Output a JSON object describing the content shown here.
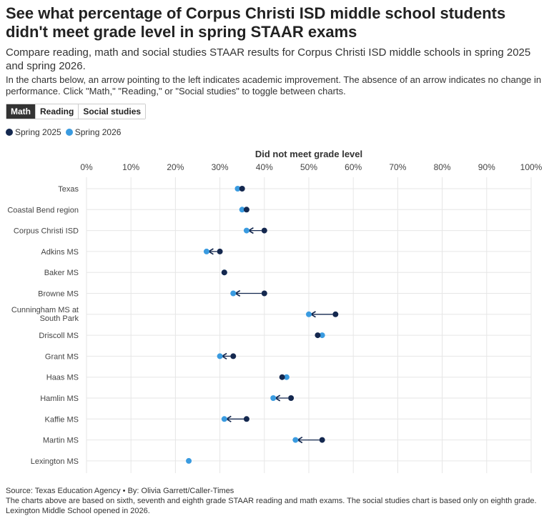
{
  "title": "See what percentage of Corpus Christi ISD middle school students didn't meet grade level in spring STAAR exams",
  "subtitle": "Compare reading, math and social studies STAAR results for Corpus Christi ISD middle schools in spring 2025 and spring 2026.",
  "note": "In the charts below, an arrow pointing to the left indicates academic improvement. The absence of an arrow indicates no change in performance. Click \"Math,\" \"Reading,\" or \"Social studies\" to toggle between charts.",
  "tabs": [
    {
      "label": "Math",
      "active": true
    },
    {
      "label": "Reading",
      "active": false
    },
    {
      "label": "Social studies",
      "active": false
    }
  ],
  "footer": {
    "source": "Source: Texas Education Agency • By: Olivia Garrett/Caller-Times",
    "note": "The charts above are based on sixth, seventh and eighth grade STAAR reading and math exams. The social studies chart is based only on eighth grade. Lexington Middle School opened in 2026."
  },
  "colors": {
    "spring_2025": "#14284f",
    "spring_2026": "#3a9be0",
    "grid": "#e6e6e6",
    "arrow": "#14284f"
  },
  "chart_data": {
    "type": "dot-arrow",
    "title": "Did not meet grade level",
    "xlabel": "Did not meet grade level",
    "xlim": [
      0,
      100
    ],
    "x_ticks": [
      "0%",
      "10%",
      "20%",
      "30%",
      "40%",
      "50%",
      "60%",
      "70%",
      "80%",
      "90%",
      "100%"
    ],
    "x_tick_values": [
      0,
      10,
      20,
      30,
      40,
      50,
      60,
      70,
      80,
      90,
      100
    ],
    "legend": "top-left",
    "grid": true,
    "categories": [
      "Texas",
      "Coastal Bend region",
      "Corpus Christi ISD",
      "Adkins MS",
      "Baker MS",
      "Browne MS",
      "Cunningham MS at South Park",
      "Driscoll MS",
      "Grant MS",
      "Haas MS",
      "Hamlin MS",
      "Kaffie MS",
      "Martin MS",
      "Lexington MS"
    ],
    "category_lines": [
      [
        "Texas"
      ],
      [
        "Coastal Bend region"
      ],
      [
        "Corpus Christi ISD"
      ],
      [
        "Adkins MS"
      ],
      [
        "Baker MS"
      ],
      [
        "Browne MS"
      ],
      [
        "Cunningham MS at",
        "South Park"
      ],
      [
        "Driscoll MS"
      ],
      [
        "Grant MS"
      ],
      [
        "Haas MS"
      ],
      [
        "Hamlin MS"
      ],
      [
        "Kaffie MS"
      ],
      [
        "Martin MS"
      ],
      [
        "Lexington MS"
      ]
    ],
    "series": [
      {
        "name": "Spring 2025",
        "values": [
          35,
          36,
          40,
          30,
          31,
          40,
          56,
          52,
          33,
          44,
          46,
          36,
          53,
          null
        ]
      },
      {
        "name": "Spring 2026",
        "values": [
          34,
          35,
          36,
          27,
          31,
          33,
          50,
          53,
          30,
          45,
          42,
          31,
          47,
          23
        ]
      }
    ]
  }
}
